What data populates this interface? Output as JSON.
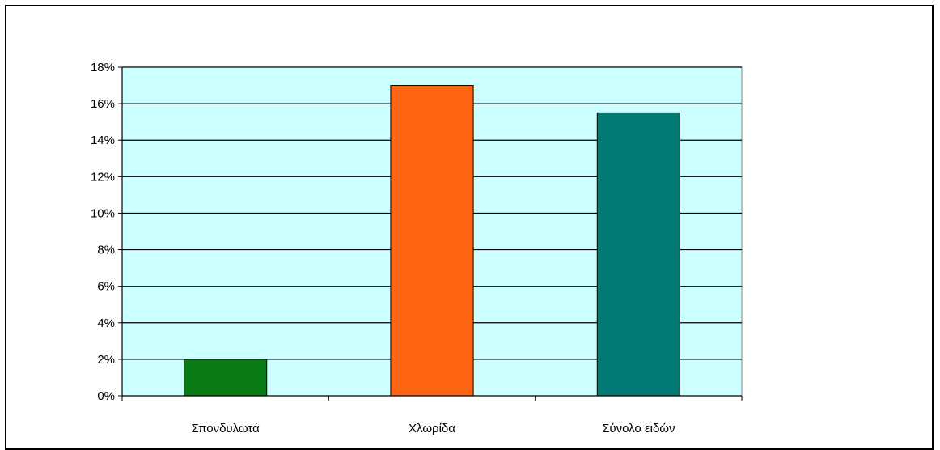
{
  "chart_data": {
    "type": "bar",
    "categories": [
      "Σπονδυλωτά",
      "Χλωρίδα",
      "Σύνολο ειδών"
    ],
    "values": [
      2,
      17,
      15.5
    ],
    "colors": [
      "#0a7a14",
      "#ff6614",
      "#007a73"
    ],
    "ylim": [
      0,
      18
    ],
    "ytick_step": 2,
    "ytick_suffix": "%",
    "grid": true,
    "plot_background": "#ccffff",
    "title": "",
    "xlabel": "",
    "ylabel": ""
  }
}
